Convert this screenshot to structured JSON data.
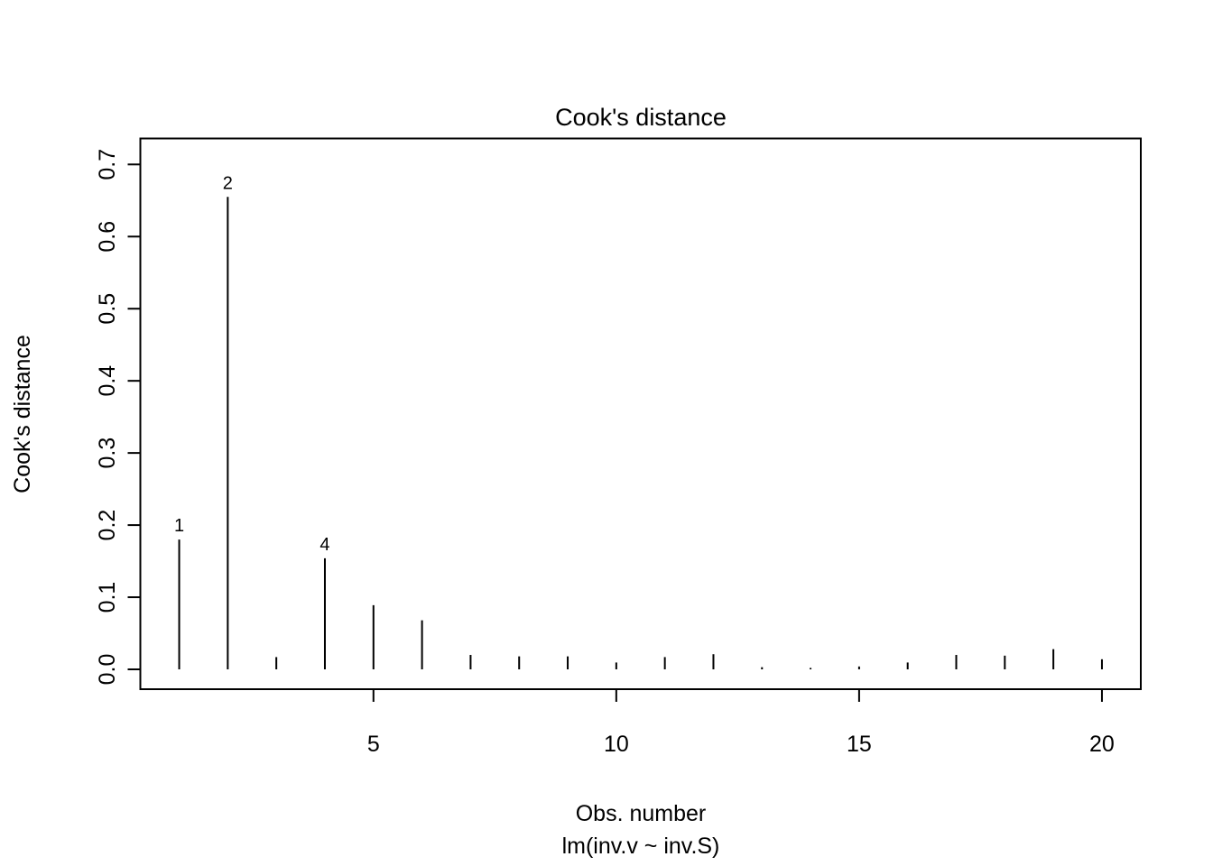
{
  "chart_data": {
    "type": "bar",
    "subtype": "spike",
    "title": "Cook's distance",
    "xlabel": "Obs. number",
    "sublabel": "lm(inv.v ~ inv.S)",
    "ylabel": "Cook's distance",
    "x": [
      1,
      2,
      3,
      4,
      5,
      6,
      7,
      8,
      9,
      10,
      11,
      12,
      13,
      14,
      15,
      16,
      17,
      18,
      19,
      20
    ],
    "values": [
      0.18,
      0.655,
      0.017,
      0.154,
      0.089,
      0.068,
      0.02,
      0.018,
      0.018,
      0.0095,
      0.017,
      0.021,
      0.003,
      0.002,
      0.004,
      0.0095,
      0.02,
      0.019,
      0.028,
      0.014
    ],
    "annotations": [
      {
        "x": 1,
        "y": 0.18,
        "label": "1"
      },
      {
        "x": 2,
        "y": 0.655,
        "label": "2"
      },
      {
        "x": 4,
        "y": 0.154,
        "label": "4"
      }
    ],
    "x_ticks": [
      {
        "value": 5,
        "label": "5"
      },
      {
        "value": 10,
        "label": "10"
      },
      {
        "value": 15,
        "label": "15"
      },
      {
        "value": 20,
        "label": "20"
      }
    ],
    "y_ticks": [
      {
        "value": 0.0,
        "label": "0.0"
      },
      {
        "value": 0.1,
        "label": "0.1"
      },
      {
        "value": 0.2,
        "label": "0.2"
      },
      {
        "value": 0.3,
        "label": "0.3"
      },
      {
        "value": 0.4,
        "label": "0.4"
      },
      {
        "value": 0.5,
        "label": "0.5"
      },
      {
        "value": 0.6,
        "label": "0.6"
      },
      {
        "value": 0.7,
        "label": "0.7"
      }
    ],
    "xlim": [
      0.2,
      20.8
    ],
    "ylim": [
      -0.0275,
      0.736
    ],
    "grid": false,
    "legend": "none",
    "colors": {
      "foreground": "#000000",
      "background": "#ffffff"
    }
  }
}
